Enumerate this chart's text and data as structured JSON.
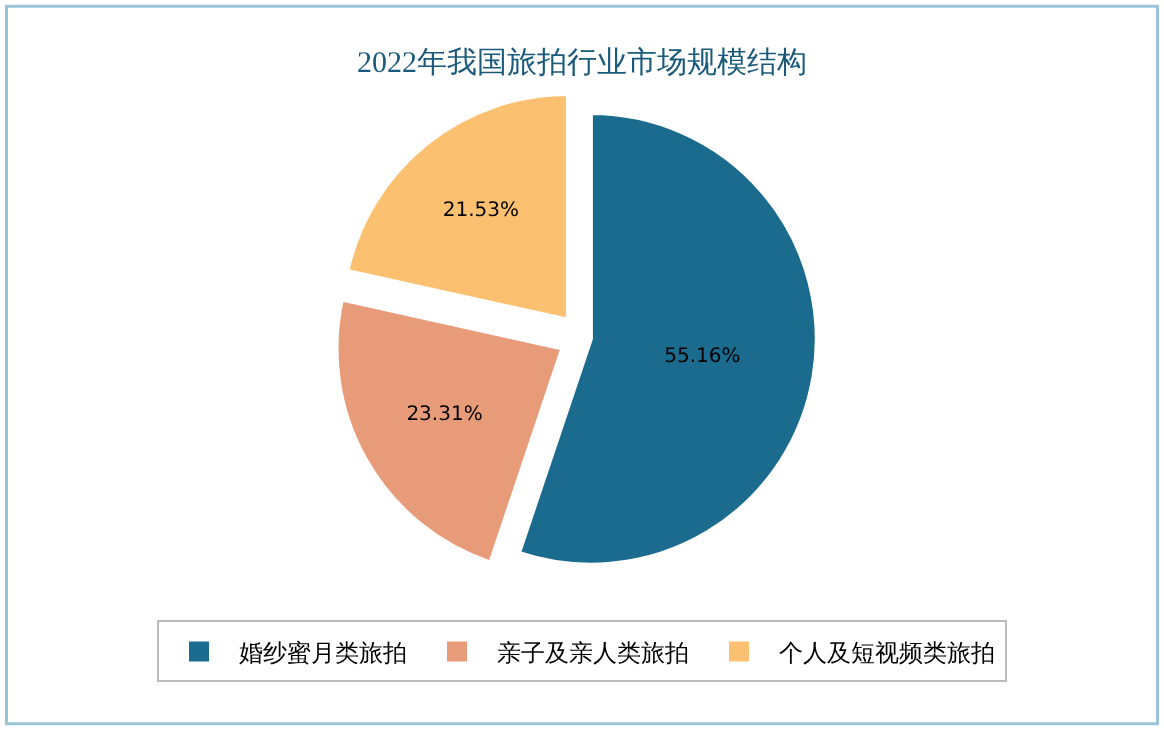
{
  "chart_data": {
    "type": "pie",
    "title": "2022年我国旅拍行业市场规模结构",
    "categories": [
      "婚纱蜜月类旅拍",
      "亲子及亲人类旅拍",
      "个人及短视频类旅拍"
    ],
    "values": [
      55.16,
      23.31,
      21.53
    ],
    "value_labels": [
      "55.16%",
      "23.31%",
      "21.53%"
    ],
    "colors": [
      "#1b6b8f",
      "#e89b78",
      "#fcc071"
    ],
    "legend": "bottom"
  }
}
